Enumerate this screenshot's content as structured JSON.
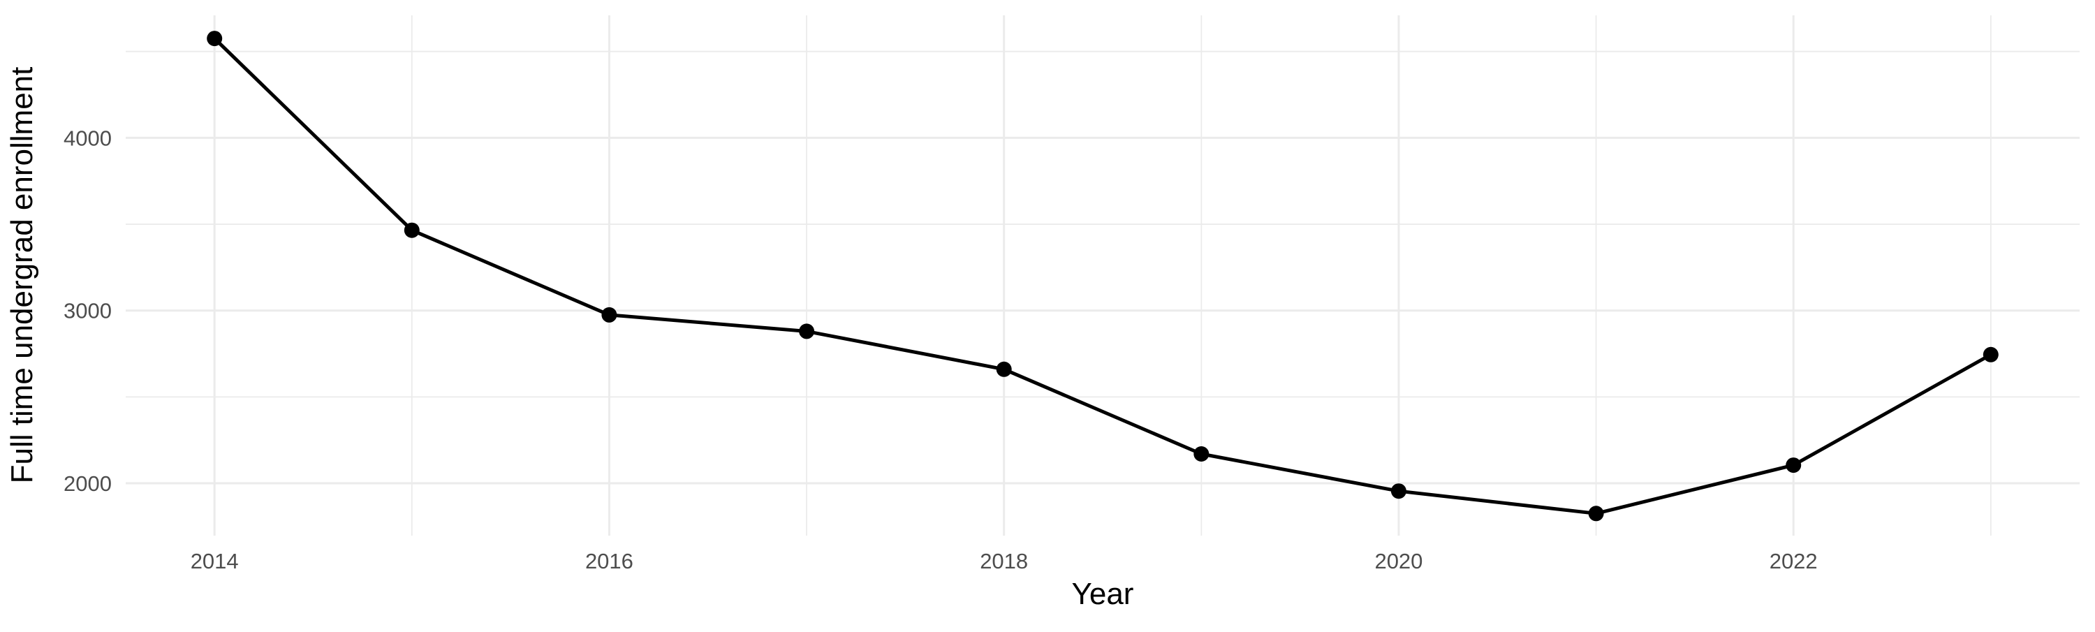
{
  "chart_data": {
    "type": "line",
    "title": "",
    "xlabel": "Year",
    "ylabel": "Full time undergrad enrollment",
    "x": [
      2014,
      2015,
      2016,
      2017,
      2018,
      2019,
      2020,
      2021,
      2022,
      2023
    ],
    "series": [
      {
        "name": "Full time undergrad enrollment",
        "values": [
          4575,
          3465,
          2975,
          2880,
          2660,
          2170,
          1955,
          1825,
          2105,
          2745
        ]
      }
    ],
    "x_ticks_major": [
      2014,
      2016,
      2018,
      2020,
      2022
    ],
    "x_ticks_minor": [
      2015,
      2017,
      2019,
      2021,
      2023
    ],
    "y_ticks_major": [
      2000,
      3000,
      4000
    ],
    "y_ticks_minor": [
      2500,
      3500,
      4500
    ],
    "xlim": [
      2013.55,
      2023.45
    ],
    "ylim": [
      1697,
      4709
    ],
    "grid": true,
    "legend": false,
    "marker": "circle",
    "colors": {
      "line": "#000000",
      "point": "#000000",
      "grid": "#EBEBEB",
      "tick_text": "#4D4D4D",
      "title_text": "#000000",
      "background": "#FFFFFF"
    }
  }
}
